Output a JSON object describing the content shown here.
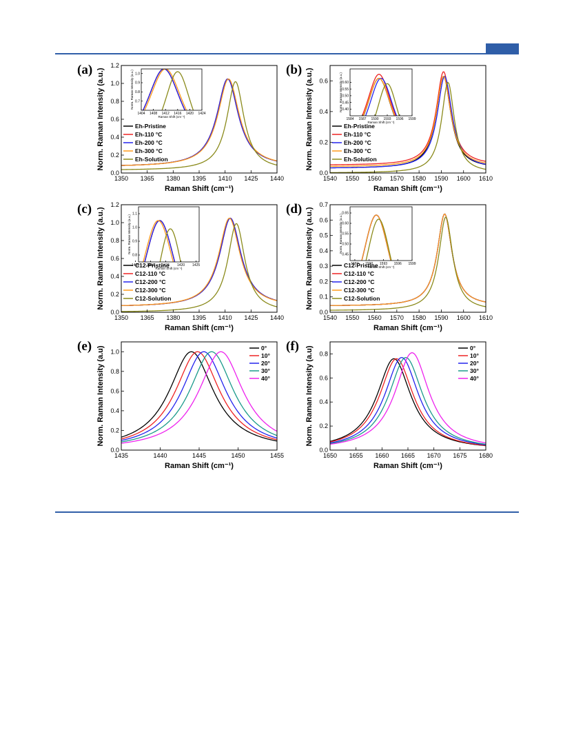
{
  "colors": {
    "header": "#2f5ea8",
    "black": "#000000",
    "red": "#ee2222",
    "blue": "#2222ee",
    "orange": "#ff9a1a",
    "olive": "#8a8a1a",
    "teal": "#1a9a8a",
    "magenta": "#ee22ee"
  },
  "chart_data": [
    {
      "id": "a",
      "type": "line",
      "panel_label": "(a)",
      "xlabel": "Raman Shift (cm⁻¹)",
      "ylabel": "Norm. Raman Intensity (a.u.)",
      "xlim": [
        1350,
        1440
      ],
      "ylim": [
        0.0,
        1.2
      ],
      "xticks": [
        "1350",
        "1365",
        "1380",
        "1395",
        "1410",
        "1425",
        "1440"
      ],
      "yticks": [
        "0.0",
        "0.2",
        "0.4",
        "0.6",
        "0.8",
        "1.0",
        "1.2"
      ],
      "legend": "left",
      "series": [
        {
          "name": "Eh-Pristine",
          "color": "#000000",
          "x0": 1411.5,
          "amp": 0.98,
          "w": 7.5,
          "base": 0.07
        },
        {
          "name": "Eh-110 °C",
          "color": "#ee2222",
          "x0": 1411.5,
          "amp": 0.98,
          "w": 7.5,
          "base": 0.07
        },
        {
          "name": "Eh-200 °C",
          "color": "#2222ee",
          "x0": 1411.5,
          "amp": 0.98,
          "w": 7.5,
          "base": 0.07
        },
        {
          "name": "Eh-300 °C",
          "color": "#ff9a1a",
          "x0": 1412.0,
          "amp": 0.98,
          "w": 7.5,
          "base": 0.07
        },
        {
          "name": "Eh-Solution",
          "color": "#8a8a1a",
          "x0": 1416.0,
          "amp": 0.99,
          "w": 6.0,
          "base": 0.03
        }
      ],
      "inset": {
        "xlim": [
          1404,
          1424
        ],
        "ylim": [
          0.6,
          1.05
        ],
        "xticks": [
          "1404",
          "1408",
          "1412",
          "1416",
          "1420",
          "1424"
        ],
        "yticks": [
          "0.7",
          "0.8",
          "0.9",
          "1.0"
        ],
        "xlabel": "Raman Shift (cm⁻¹)",
        "ylabel": "Norm. Raman Intensity (a.u.)"
      }
    },
    {
      "id": "b",
      "type": "line",
      "panel_label": "(b)",
      "xlabel": "Raman Shift (cm⁻¹)",
      "ylabel": "Norm. Raman Intensity (a.u.)",
      "xlim": [
        1540,
        1610
      ],
      "ylim": [
        0.0,
        0.7
      ],
      "xticks": [
        "1540",
        "1550",
        "1560",
        "1570",
        "1580",
        "1590",
        "1600",
        "1610"
      ],
      "yticks": [
        "0.0",
        "0.2",
        "0.4",
        "0.6"
      ],
      "legend": "left",
      "series": [
        {
          "name": "Eh-Pristine",
          "color": "#000000",
          "x0": 1591.0,
          "amp": 0.6,
          "w": 4.0,
          "base": 0.03
        },
        {
          "name": "Eh-110 °C",
          "color": "#ee2222",
          "x0": 1591.0,
          "amp": 0.61,
          "w": 4.0,
          "base": 0.05
        },
        {
          "name": "Eh-200 °C",
          "color": "#2222ee",
          "x0": 1591.5,
          "amp": 0.6,
          "w": 4.0,
          "base": 0.03
        },
        {
          "name": "Eh-300 °C",
          "color": "#ff9a1a",
          "x0": 1591.0,
          "amp": 0.59,
          "w": 4.0,
          "base": 0.04
        },
        {
          "name": "Eh-Solution",
          "color": "#8a8a1a",
          "x0": 1593.0,
          "amp": 0.59,
          "w": 3.5,
          "base": 0.0
        }
      ],
      "inset": {
        "xlim": [
          1584,
          1599
        ],
        "ylim": [
          0.35,
          0.7
        ],
        "xticks": [
          "1584",
          "1587",
          "1590",
          "1593",
          "1596",
          "1599"
        ],
        "yticks": [
          "0.40",
          "0.45",
          "0.50",
          "0.55",
          "0.60"
        ],
        "xlabel": "Raman Shift (cm⁻¹)",
        "ylabel": "Norm. Raman Intensity (a.u.)"
      }
    },
    {
      "id": "c",
      "type": "line",
      "panel_label": "(c)",
      "xlabel": "Raman Shift (cm⁻¹)",
      "ylabel": "Norm. Raman Intensity (a.u.)",
      "xlim": [
        1350,
        1440
      ],
      "ylim": [
        0.0,
        1.2
      ],
      "xticks": [
        "1350",
        "1365",
        "1380",
        "1395",
        "1410",
        "1425",
        "1440"
      ],
      "yticks": [
        "0.0",
        "0.2",
        "0.4",
        "0.6",
        "0.8",
        "1.0",
        "1.2"
      ],
      "legend": "left",
      "series": [
        {
          "name": "C12-Pristine",
          "color": "#000000",
          "x0": 1413.0,
          "amp": 0.99,
          "w": 7.5,
          "base": 0.06
        },
        {
          "name": "C12-110 °C",
          "color": "#ee2222",
          "x0": 1413.0,
          "amp": 0.99,
          "w": 7.5,
          "base": 0.06
        },
        {
          "name": "C12-200 °C",
          "color": "#2222ee",
          "x0": 1413.0,
          "amp": 0.99,
          "w": 7.5,
          "base": 0.06
        },
        {
          "name": "C12-300 °C",
          "color": "#ff9a1a",
          "x0": 1412.5,
          "amp": 0.99,
          "w": 7.5,
          "base": 0.06
        },
        {
          "name": "C12-Solution",
          "color": "#8a8a1a",
          "x0": 1416.5,
          "amp": 0.99,
          "w": 6.0,
          "base": 0.0
        }
      ],
      "inset": {
        "xlim": [
          1406,
          1426
        ],
        "ylim": [
          0.75,
          1.15
        ],
        "xticks": [
          "1405",
          "1410",
          "1415",
          "1420",
          "1425"
        ],
        "yticks": [
          "0.8",
          "0.9",
          "1.0",
          "1.1"
        ],
        "xlabel": "Raman Shift (cm⁻¹)",
        "ylabel": "Norm. Raman Intensity (a.u.)"
      }
    },
    {
      "id": "d",
      "type": "line",
      "panel_label": "(d)",
      "xlabel": "Raman Shift (cm⁻¹)",
      "ylabel": "Norm. Raman Intensity (a.u.)",
      "xlim": [
        1540,
        1610
      ],
      "ylim": [
        0.0,
        0.7
      ],
      "xticks": [
        "1540",
        "1550",
        "1560",
        "1570",
        "1580",
        "1590",
        "1600",
        "1610"
      ],
      "yticks": [
        "0.0",
        "0.1",
        "0.2",
        "0.3",
        "0.4",
        "0.5",
        "0.6",
        "0.7"
      ],
      "legend": "left",
      "series": [
        {
          "name": "C12-Pristine",
          "color": "#000000",
          "x0": 1591.5,
          "amp": 0.6,
          "w": 4.0,
          "base": 0.04
        },
        {
          "name": "C12-110 °C",
          "color": "#ee2222",
          "x0": 1591.5,
          "amp": 0.6,
          "w": 4.0,
          "base": 0.04
        },
        {
          "name": "C12-200 °C",
          "color": "#2222ee",
          "x0": 1591.5,
          "amp": 0.6,
          "w": 4.0,
          "base": 0.04
        },
        {
          "name": "C12-300 °C",
          "color": "#ff9a1a",
          "x0": 1591.5,
          "amp": 0.6,
          "w": 4.0,
          "base": 0.04
        },
        {
          "name": "C12-Solution",
          "color": "#8a8a1a",
          "x0": 1592.0,
          "amp": 0.61,
          "w": 3.8,
          "base": 0.01
        }
      ],
      "inset": {
        "xlim": [
          1586,
          1599
        ],
        "ylim": [
          0.42,
          0.68
        ],
        "xticks": [
          "1587",
          "1590",
          "1593",
          "1596",
          "1599"
        ],
        "yticks": [
          "0.45",
          "0.50",
          "0.55",
          "0.60",
          "0.65"
        ],
        "xlabel": "Raman Shift (cm⁻¹)",
        "ylabel": "Norm. Raman Intensity (a.u.)"
      }
    },
    {
      "id": "e",
      "type": "line",
      "panel_label": "(e)",
      "xlabel": "Raman Shift (cm⁻¹)",
      "ylabel": "Norm. Raman Intensity (a.u)",
      "xlim": [
        1435,
        1455
      ],
      "ylim": [
        0.0,
        1.1
      ],
      "xticks": [
        "1435",
        "1440",
        "1445",
        "1450",
        "1455"
      ],
      "yticks": [
        "0.0",
        "0.2",
        "0.4",
        "0.6",
        "0.8",
        "1.0"
      ],
      "legend": "right",
      "series": [
        {
          "name": "0°",
          "color": "#000000",
          "x0": 1444.0,
          "amp": 1.0,
          "w": 3.5,
          "base": 0.0
        },
        {
          "name": "10°",
          "color": "#ee2222",
          "x0": 1444.8,
          "amp": 1.0,
          "w": 3.5,
          "base": 0.0
        },
        {
          "name": "20°",
          "color": "#2222ee",
          "x0": 1445.6,
          "amp": 1.0,
          "w": 3.5,
          "base": 0.0
        },
        {
          "name": "30°",
          "color": "#1a9a8a",
          "x0": 1446.6,
          "amp": 1.0,
          "w": 3.5,
          "base": 0.0
        },
        {
          "name": "40°",
          "color": "#ee22ee",
          "x0": 1447.8,
          "amp": 1.0,
          "w": 3.5,
          "base": 0.0
        }
      ]
    },
    {
      "id": "f",
      "type": "line",
      "panel_label": "(f)",
      "xlabel": "Raman Shift (cm⁻¹)",
      "ylabel": "Norm. Raman Intensity (a.u)",
      "xlim": [
        1650,
        1680
      ],
      "ylim": [
        0.0,
        0.9
      ],
      "xticks": [
        "1650",
        "1655",
        "1660",
        "1665",
        "1670",
        "1675",
        "1680"
      ],
      "yticks": [
        "0.0",
        "0.2",
        "0.4",
        "0.6",
        "0.8"
      ],
      "legend": "right",
      "series": [
        {
          "name": "0°",
          "color": "#000000",
          "x0": 1662.3,
          "amp": 0.76,
          "w": 4.0,
          "base": 0.0
        },
        {
          "name": "10°",
          "color": "#ee2222",
          "x0": 1662.8,
          "amp": 0.76,
          "w": 4.0,
          "base": 0.0
        },
        {
          "name": "20°",
          "color": "#2222ee",
          "x0": 1663.8,
          "amp": 0.77,
          "w": 4.0,
          "base": 0.0
        },
        {
          "name": "30°",
          "color": "#1a9a8a",
          "x0": 1664.6,
          "amp": 0.77,
          "w": 4.0,
          "base": 0.0
        },
        {
          "name": "40°",
          "color": "#ee22ee",
          "x0": 1665.8,
          "amp": 0.81,
          "w": 4.0,
          "base": 0.0
        }
      ]
    }
  ]
}
